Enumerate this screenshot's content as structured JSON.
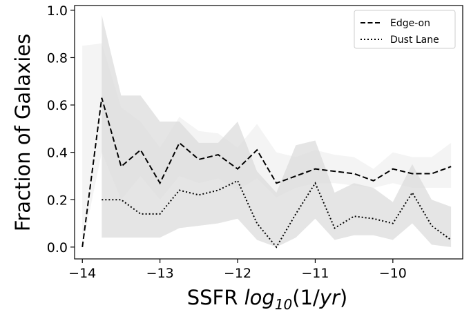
{
  "chart_data": {
    "type": "line",
    "xlabel": {
      "main": "SSFR ",
      "func": "log",
      "sub": "10",
      "arg_open": "(1/",
      "arg_var": "yr",
      "arg_close": ")"
    },
    "ylabel": "Fraction of Galaxies",
    "xlim": [
      -14.1,
      -9.1
    ],
    "ylim": [
      -0.05,
      1.02
    ],
    "xticks": [
      -14,
      -13,
      -12,
      -11,
      -10
    ],
    "xtick_labels": [
      "−14",
      "−13",
      "−12",
      "−11",
      "−10"
    ],
    "yticks": [
      0.0,
      0.2,
      0.4,
      0.6,
      0.8,
      1.0
    ],
    "ytick_labels": [
      "0.0",
      "0.2",
      "0.4",
      "0.6",
      "0.8",
      "1.0"
    ],
    "grid": false,
    "legend_position": "top-right",
    "series": [
      {
        "name": "Edge-on",
        "style": "dashed",
        "color": "#000000",
        "x": [
          -14.0,
          -13.75,
          -13.5,
          -13.25,
          -13.0,
          -12.75,
          -12.5,
          -12.25,
          -12.0,
          -11.75,
          -11.5,
          -11.25,
          -11.0,
          -10.75,
          -10.5,
          -10.25,
          -10.0,
          -9.75,
          -9.5,
          -9.25
        ],
        "y": [
          0.0,
          0.63,
          0.34,
          0.41,
          0.27,
          0.44,
          0.37,
          0.39,
          0.33,
          0.41,
          0.27,
          0.3,
          0.33,
          0.32,
          0.31,
          0.28,
          0.33,
          0.31,
          0.31,
          0.34
        ],
        "band_lower": [
          0.0,
          0.4,
          0.2,
          0.3,
          0.2,
          0.3,
          0.27,
          0.29,
          0.24,
          0.29,
          0.21,
          0.25,
          0.27,
          0.27,
          0.26,
          0.25,
          0.27,
          0.25,
          0.25,
          0.25
        ],
        "band_upper": [
          0.85,
          0.86,
          0.59,
          0.53,
          0.42,
          0.55,
          0.49,
          0.48,
          0.42,
          0.52,
          0.4,
          0.38,
          0.41,
          0.39,
          0.38,
          0.33,
          0.4,
          0.38,
          0.38,
          0.44
        ],
        "band_color": "#f0f0f0"
      },
      {
        "name": "Dust Lane",
        "style": "dotted",
        "color": "#000000",
        "x": [
          -13.75,
          -13.5,
          -13.25,
          -13.0,
          -12.75,
          -12.5,
          -12.25,
          -12.0,
          -11.75,
          -11.5,
          -11.25,
          -11.0,
          -10.75,
          -10.5,
          -10.25,
          -10.0,
          -9.75,
          -9.5,
          -9.25
        ],
        "y": [
          0.2,
          0.2,
          0.14,
          0.14,
          0.24,
          0.22,
          0.24,
          0.28,
          0.1,
          0.0,
          0.14,
          0.27,
          0.08,
          0.13,
          0.12,
          0.1,
          0.23,
          0.09,
          0.03
        ],
        "band_lower": [
          0.04,
          0.04,
          0.04,
          0.04,
          0.08,
          0.09,
          0.1,
          0.12,
          0.03,
          0.0,
          0.04,
          0.12,
          0.03,
          0.05,
          0.05,
          0.03,
          0.1,
          0.01,
          0.0
        ],
        "band_upper": [
          0.98,
          0.64,
          0.64,
          0.53,
          0.53,
          0.44,
          0.44,
          0.53,
          0.32,
          0.23,
          0.43,
          0.45,
          0.23,
          0.27,
          0.25,
          0.19,
          0.35,
          0.2,
          0.17
        ],
        "band_color": "#dcdcdc"
      }
    ]
  }
}
